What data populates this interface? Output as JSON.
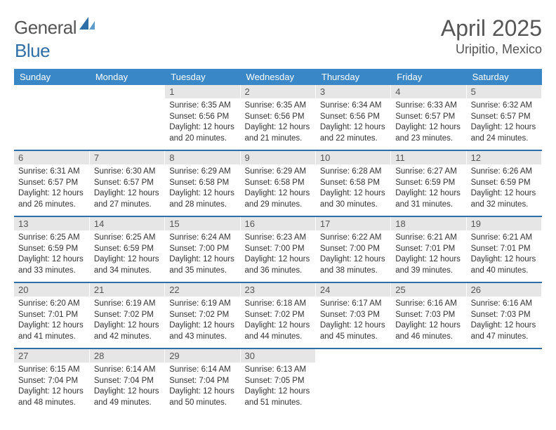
{
  "brand": {
    "word1": "General",
    "word2": "Blue"
  },
  "title": "April 2025",
  "subtitle": "Uripitio, Mexico",
  "colors": {
    "header_bg": "#3a87c8",
    "header_text": "#ffffff",
    "daynum_bg": "#e6e6e6",
    "rule": "#2f6fa7",
    "body_text": "#333333",
    "title_text": "#555555",
    "logo_gray": "#555555",
    "logo_blue": "#2f6fa7",
    "page_bg": "#ffffff"
  },
  "typography": {
    "title_pt": 32,
    "subtitle_pt": 18,
    "header_pt": 13,
    "daynum_pt": 13,
    "body_pt": 11.5,
    "font_family": "Arial"
  },
  "days_header": [
    "Sunday",
    "Monday",
    "Tuesday",
    "Wednesday",
    "Thursday",
    "Friday",
    "Saturday"
  ],
  "weeks": [
    [
      null,
      null,
      {
        "n": "1",
        "sr": "6:35 AM",
        "ss": "6:56 PM",
        "dl": "12 hours and 20 minutes."
      },
      {
        "n": "2",
        "sr": "6:35 AM",
        "ss": "6:56 PM",
        "dl": "12 hours and 21 minutes."
      },
      {
        "n": "3",
        "sr": "6:34 AM",
        "ss": "6:56 PM",
        "dl": "12 hours and 22 minutes."
      },
      {
        "n": "4",
        "sr": "6:33 AM",
        "ss": "6:57 PM",
        "dl": "12 hours and 23 minutes."
      },
      {
        "n": "5",
        "sr": "6:32 AM",
        "ss": "6:57 PM",
        "dl": "12 hours and 24 minutes."
      }
    ],
    [
      {
        "n": "6",
        "sr": "6:31 AM",
        "ss": "6:57 PM",
        "dl": "12 hours and 26 minutes."
      },
      {
        "n": "7",
        "sr": "6:30 AM",
        "ss": "6:57 PM",
        "dl": "12 hours and 27 minutes."
      },
      {
        "n": "8",
        "sr": "6:29 AM",
        "ss": "6:58 PM",
        "dl": "12 hours and 28 minutes."
      },
      {
        "n": "9",
        "sr": "6:29 AM",
        "ss": "6:58 PM",
        "dl": "12 hours and 29 minutes."
      },
      {
        "n": "10",
        "sr": "6:28 AM",
        "ss": "6:58 PM",
        "dl": "12 hours and 30 minutes."
      },
      {
        "n": "11",
        "sr": "6:27 AM",
        "ss": "6:59 PM",
        "dl": "12 hours and 31 minutes."
      },
      {
        "n": "12",
        "sr": "6:26 AM",
        "ss": "6:59 PM",
        "dl": "12 hours and 32 minutes."
      }
    ],
    [
      {
        "n": "13",
        "sr": "6:25 AM",
        "ss": "6:59 PM",
        "dl": "12 hours and 33 minutes."
      },
      {
        "n": "14",
        "sr": "6:25 AM",
        "ss": "6:59 PM",
        "dl": "12 hours and 34 minutes."
      },
      {
        "n": "15",
        "sr": "6:24 AM",
        "ss": "7:00 PM",
        "dl": "12 hours and 35 minutes."
      },
      {
        "n": "16",
        "sr": "6:23 AM",
        "ss": "7:00 PM",
        "dl": "12 hours and 36 minutes."
      },
      {
        "n": "17",
        "sr": "6:22 AM",
        "ss": "7:00 PM",
        "dl": "12 hours and 38 minutes."
      },
      {
        "n": "18",
        "sr": "6:21 AM",
        "ss": "7:01 PM",
        "dl": "12 hours and 39 minutes."
      },
      {
        "n": "19",
        "sr": "6:21 AM",
        "ss": "7:01 PM",
        "dl": "12 hours and 40 minutes."
      }
    ],
    [
      {
        "n": "20",
        "sr": "6:20 AM",
        "ss": "7:01 PM",
        "dl": "12 hours and 41 minutes."
      },
      {
        "n": "21",
        "sr": "6:19 AM",
        "ss": "7:02 PM",
        "dl": "12 hours and 42 minutes."
      },
      {
        "n": "22",
        "sr": "6:19 AM",
        "ss": "7:02 PM",
        "dl": "12 hours and 43 minutes."
      },
      {
        "n": "23",
        "sr": "6:18 AM",
        "ss": "7:02 PM",
        "dl": "12 hours and 44 minutes."
      },
      {
        "n": "24",
        "sr": "6:17 AM",
        "ss": "7:03 PM",
        "dl": "12 hours and 45 minutes."
      },
      {
        "n": "25",
        "sr": "6:16 AM",
        "ss": "7:03 PM",
        "dl": "12 hours and 46 minutes."
      },
      {
        "n": "26",
        "sr": "6:16 AM",
        "ss": "7:03 PM",
        "dl": "12 hours and 47 minutes."
      }
    ],
    [
      {
        "n": "27",
        "sr": "6:15 AM",
        "ss": "7:04 PM",
        "dl": "12 hours and 48 minutes."
      },
      {
        "n": "28",
        "sr": "6:14 AM",
        "ss": "7:04 PM",
        "dl": "12 hours and 49 minutes."
      },
      {
        "n": "29",
        "sr": "6:14 AM",
        "ss": "7:04 PM",
        "dl": "12 hours and 50 minutes."
      },
      {
        "n": "30",
        "sr": "6:13 AM",
        "ss": "7:05 PM",
        "dl": "12 hours and 51 minutes."
      },
      null,
      null,
      null
    ]
  ],
  "labels": {
    "sunrise": "Sunrise:",
    "sunset": "Sunset:",
    "daylight": "Daylight:"
  }
}
